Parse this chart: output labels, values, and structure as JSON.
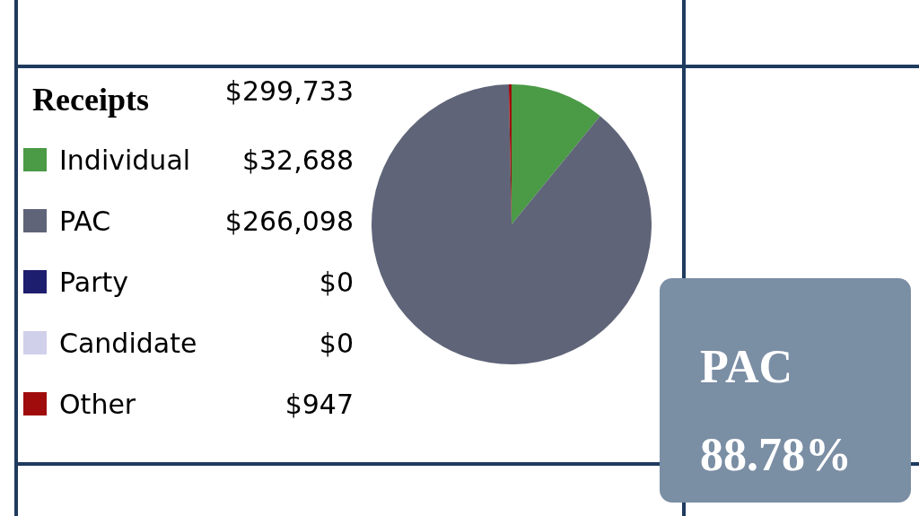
{
  "chart_data": {
    "type": "pie",
    "title": "Receipts",
    "subtitle": "$299,733",
    "categories": [
      "Individual",
      "PAC",
      "Party",
      "Candidate",
      "Other"
    ],
    "values": [
      32688,
      266098,
      0,
      0,
      947
    ],
    "colors": [
      "#4a9a46",
      "#5f6478",
      "#1e1e6e",
      "#d0d0ea",
      "#a00c0c"
    ],
    "value_labels": [
      "$32,688",
      "$266,098",
      "$0",
      "$0",
      "$947"
    ],
    "legend": "left",
    "annotations": [
      "PAC",
      "88.78%"
    ]
  }
}
